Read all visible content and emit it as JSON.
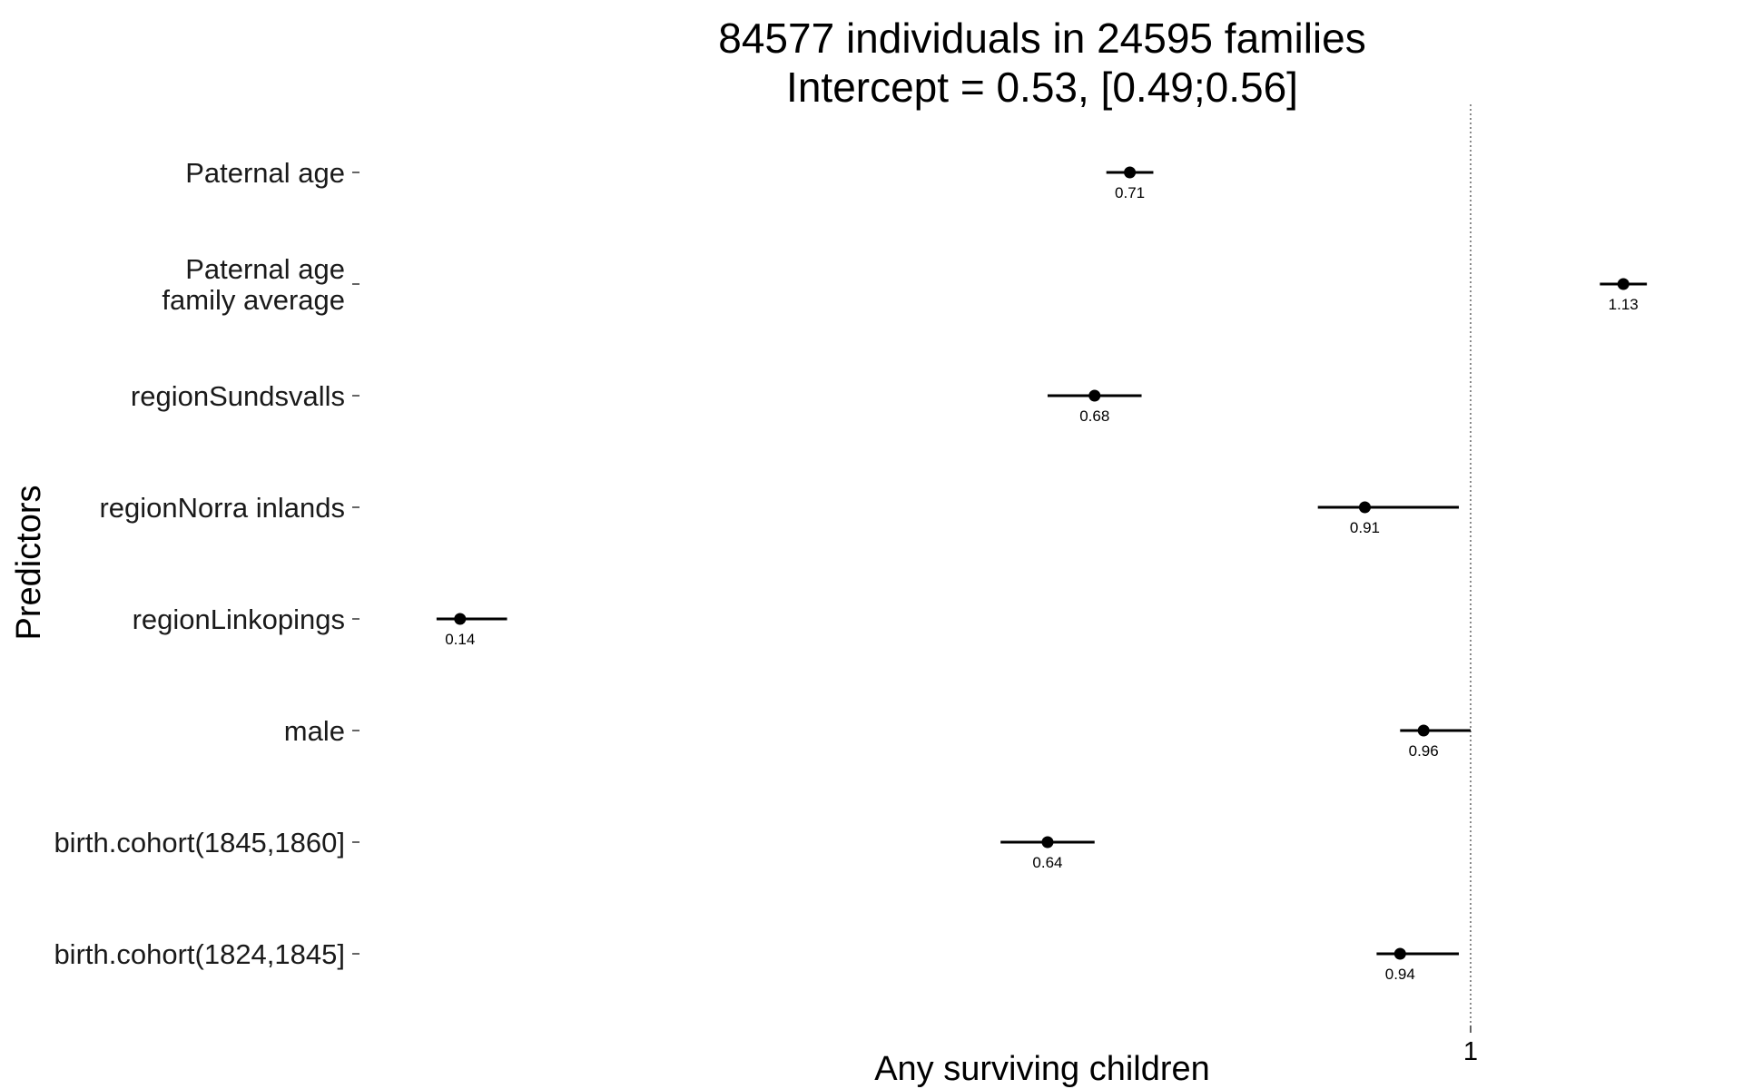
{
  "chart_data": {
    "type": "forest",
    "title": "84577 individuals in 24595 families",
    "subtitle": "Intercept = 0.53, [0.49;0.56]",
    "xlabel": "Any surviving children",
    "ylabel": "Predictors",
    "reference_line": 1,
    "x_ticks": [
      "1"
    ],
    "xlim": [
      0.1,
      1.17
    ],
    "grid": false,
    "legend": "none",
    "point_color": "#000000",
    "reference_line_color": "#666666",
    "categories": [
      [
        "Paternal age"
      ],
      [
        "Paternal age",
        "family average"
      ],
      [
        "regionSundsvalls"
      ],
      [
        "regionNorra inlands"
      ],
      [
        "regionLinkopings"
      ],
      [
        "male"
      ],
      [
        "birth.cohort(1845,1860]"
      ],
      [
        "birth.cohort(1824,1845]"
      ]
    ],
    "estimates": [
      0.71,
      1.13,
      0.68,
      0.91,
      0.14,
      0.96,
      0.64,
      0.94
    ],
    "ci_low": [
      0.69,
      1.11,
      0.64,
      0.87,
      0.12,
      0.94,
      0.6,
      0.92
    ],
    "ci_high": [
      0.73,
      1.15,
      0.72,
      0.99,
      0.18,
      1.0,
      0.68,
      0.99
    ],
    "value_labels": [
      "0.71",
      "1.13",
      "0.68",
      "0.91",
      "0.14",
      "0.96",
      "0.64",
      "0.94"
    ]
  }
}
